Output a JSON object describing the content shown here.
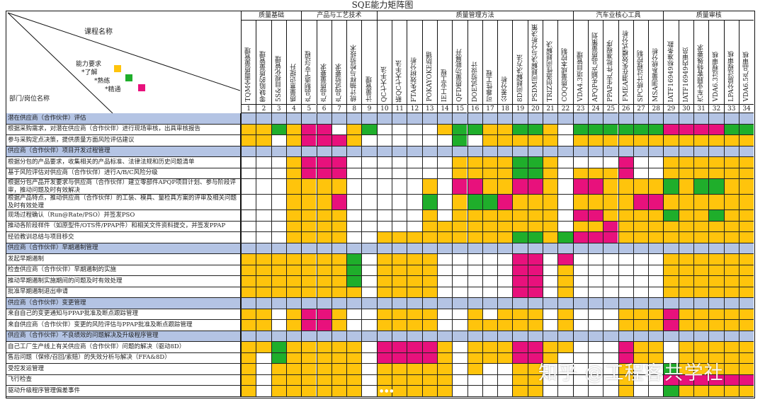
{
  "title": "SQE能力矩阵图",
  "corner": {
    "course_label": "课程名称",
    "dept_label": "部门/岗位名称",
    "legend_title": "能力要求",
    "legend": [
      {
        "label": "*了解",
        "level": "Y",
        "color": "#ffc40c"
      },
      {
        "label": "*熟练",
        "level": "G",
        "color": "#1fae2b"
      },
      {
        "label": "*精通",
        "level": "P",
        "color": "#e8117c"
      }
    ]
  },
  "colors": {
    "Y": "#ffc40c",
    "G": "#1fae2b",
    "P": "#e8117c",
    "W": "#ffffff",
    "section": "#b4c4e4"
  },
  "groups": [
    {
      "name": "质量基础",
      "start": 1,
      "end": 4
    },
    {
      "name": "产品与工艺技术",
      "start": 5,
      "end": 9
    },
    {
      "name": "质量管理方法",
      "start": 10,
      "end": 22
    },
    {
      "name": "汽车业核心工具",
      "start": 23,
      "end": 28
    },
    {
      "name": "质量审核",
      "start": 29,
      "end": 34
    }
  ],
  "courses": [
    "TQM全面质量管理",
    "零缺陷的质量管理",
    "5S&目视化管理",
    "质量意识提升",
    "产品制造工艺过程",
    "产品质量要求",
    "产品试验要求",
    "统计抽样与检验技术",
    "计量管理",
    "QC七大手法",
    "新QC七大手法",
    "FTA失效树分析",
    "POKAYOKE防错",
    "IE工业工程",
    "QFD质量功能展开",
    "DOE试验设计",
    "可靠性工程",
    "公差分析",
    "8D问题解决方法",
    "PSDM问题解决与分析决策",
    "TRIZ创造性问题解决",
    "COQ质量成本控制",
    "VDA4.3项目管理",
    "APQP先期产品质量策划",
    "PPAP生产件批准程序",
    "FMEA潜在失效模式分析",
    "SPC统计过程控制",
    "MSA测量系统分析",
    "IATF16949标准条款",
    "IATF16949内审员",
    "汽车业顾客特殊要求",
    "VDA6.3过程审核",
    "LPA分层过程审核",
    "VDA6.5产品审核"
  ],
  "numbers": [
    "1",
    "2",
    "3",
    "4",
    "5",
    "6",
    "7",
    "8",
    "9",
    "10",
    "11",
    "12",
    "13",
    "14",
    "15",
    "16",
    "17",
    "18",
    "19",
    "20",
    "21",
    "22",
    "23",
    "24",
    "25",
    "26",
    "27",
    "28",
    "29",
    "30",
    "31",
    "32",
    "33",
    "34"
  ],
  "rows": [
    {
      "type": "section",
      "label": "潜在供应商（合作伙伴）评估"
    },
    {
      "type": "item",
      "label": "根据采购需求，对潜在供应商（合作伙伴）进行现场审核，出具审核报告",
      "cells": "YYGYPPWYGWWWWYGGYYGGYWGGGGGGPPPPGG"
    },
    {
      "type": "item",
      "label": "参与采购定点决策，提供质量方面风险评估建议",
      "cells": "YYWYPPPYWWWWWWGWYYYYYWYYYYYYYYYYYY"
    },
    {
      "type": "section",
      "label": "供应商（合作伙伴）项目开发过程管理"
    },
    {
      "type": "item",
      "label": "根据分包的产品要求，收集相关的产品标准、法律法规和历史问题清单",
      "cells": "WWWYPPPWWWWWWWYYYYGGYWWWWPWWYYYYYY"
    },
    {
      "type": "item",
      "label": "基于风险评估对供应商（合作伙伴）进行A/B/C风险分级",
      "cells": "WWWYPPPWWWWWWWYYYYGGYWYYYPWWYYYYYY"
    },
    {
      "type": "item",
      "tall": true,
      "label": "根据分包产品开发要求与供应商（合作伙伴）建立零部件APQP项目计划、参与阶段评审，推动问题及时有效解决",
      "cells": "WWWYYYYWWWWWYWPPYYPPYWPPYYYYGYGGYY"
    },
    {
      "type": "item",
      "tall": true,
      "label": "根据产品特点，推动供应商（合作伙伴）的工装、模具、量检具方案的评审及相关问题及时有效处理",
      "cells": "WWWYYYPWWWWWGWYGGPYYYWYYYYPPYYYYYY"
    },
    {
      "type": "item",
      "label": "现场过程确认（Run@Rate/PSO）并签发PSO",
      "cells": "WWWYYYYWWWWWYWYYYYYYYWPPYYYYGYYGYY"
    },
    {
      "type": "item",
      "label": "推动各阶段样件（如原型件/OTS件/PPAP件）和相关文件资料提交，并签发PPAP",
      "cells": "WWWYYYYWWWWWYYYYYYYYYWYYPYYYYYYYYY"
    },
    {
      "type": "item",
      "label": "经验教训总结与项目移交",
      "cells": "WWWYYYYWWYYYYYYYYYGGYGPPPYYYYYYYYY"
    },
    {
      "type": "section",
      "label": "供应商（合作伙伴）早期遏制管理"
    },
    {
      "type": "item",
      "label": "发起早期遏制",
      "cells": "YYYYYYYGWYYYYWWWWWPPWPWWWWWWYYYYYY"
    },
    {
      "type": "item",
      "label": "检查供应商（合作伙伴）早期遏制的实施",
      "cells": "YYYYYYYGWYYYYWWWWWPPWYWWWWWWYYYYYY"
    },
    {
      "type": "item",
      "label": "推动早期遏制实施期间的问题及时有效处理",
      "cells": "YYYYYYYGWYYYYWWWWWPPWYWWWWWWYYYYYY"
    },
    {
      "type": "item",
      "label": "批准早期遏制退出申请",
      "cells": "YYYYYYYYWYYYYWWWWWPPWYWWWWWWYYYYYY"
    },
    {
      "type": "section",
      "label": "供应商（合作伙伴）变更管理"
    },
    {
      "type": "item",
      "label": "来自自己的变更通知与PPAP批准及断点跟踪管理",
      "cells": "YYWYPPYWWYYYYWWYWYYYWYWWWYYYPYYYYY"
    },
    {
      "type": "item",
      "label": "来自供应商（合作伙伴）变更的风险评估与PPAP批准及断点跟踪管理",
      "cells": "YYWYPPYWWYYYYWWYYYYYWYWWWYYYPYYYYY"
    },
    {
      "type": "section",
      "label": "供应商（合作伙伴）不良绩效的问题解决及升级程序管理"
    },
    {
      "type": "item",
      "label": "自己工厂生产线上有关供应商（合作伙伴）问题的解决（驱动8D）",
      "cells": "YYGYYYYYWPPPPYWYYYPPYYWWWPYYWYYYYY"
    },
    {
      "type": "item",
      "label": "售后问题（保修/召回/索赔）的失效分析与解决（FFA&8D）",
      "cells": "YWGYYYYYWPPPPYWYYYPPYWWWWPYYWYYYYY"
    },
    {
      "type": "item",
      "label": "受控发运管理",
      "cells": "YWYYYYYYWYYYYYWYWWYYWWWWWYWWGYYYYY"
    },
    {
      "type": "item",
      "label": "飞行检查",
      "cells": "YWYYYYYYWYYYYYWWWWYYWWWWWYWWPPPPPP"
    },
    {
      "type": "item",
      "label": "驱动升级程序管理偏差事件",
      "cells": "YWYYYYYYWYYYYYWWWWYYWWWWWYWWGYYYYY"
    }
  ],
  "watermark": "知乎 @工程客共学社"
}
